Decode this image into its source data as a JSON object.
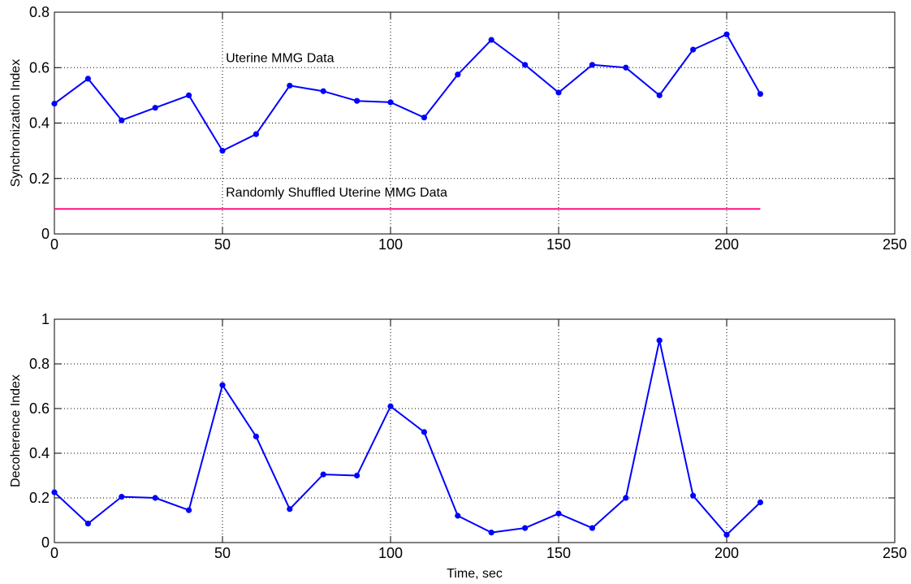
{
  "chart_data": [
    {
      "type": "line",
      "xlabel": "",
      "ylabel": "Synchronization Index",
      "xlim": [
        0,
        250
      ],
      "ylim": [
        0,
        0.8
      ],
      "xticks": [
        0,
        50,
        100,
        150,
        200,
        250
      ],
      "yticks": [
        0,
        0.2,
        0.4,
        0.6,
        0.8
      ],
      "grid": true,
      "series": [
        {
          "color": "#0000ff",
          "markers": true,
          "x": [
            0,
            10,
            20,
            30,
            40,
            50,
            60,
            70,
            80,
            90,
            100,
            110,
            120,
            130,
            140,
            150,
            160,
            170,
            180,
            190,
            200,
            210
          ],
          "y": [
            0.47,
            0.56,
            0.41,
            0.455,
            0.5,
            0.3,
            0.36,
            0.535,
            0.515,
            0.48,
            0.475,
            0.42,
            0.575,
            0.7,
            0.61,
            0.51,
            0.61,
            0.6,
            0.5,
            0.665,
            0.72,
            0.505
          ]
        },
        {
          "color": "#ff1080",
          "markers": false,
          "x": [
            0,
            210
          ],
          "y": [
            0.09,
            0.09
          ]
        }
      ],
      "annotations": [
        {
          "text": "Uterine MMG Data",
          "x": 51,
          "y": 0.62
        },
        {
          "text": "Randomly Shuffled Uterine MMG Data",
          "x": 51,
          "y": 0.135
        }
      ]
    },
    {
      "type": "line",
      "xlabel": "Time, sec",
      "ylabel": "Decoherence Index",
      "xlim": [
        0,
        250
      ],
      "ylim": [
        0,
        1
      ],
      "xticks": [
        0,
        50,
        100,
        150,
        200,
        250
      ],
      "yticks": [
        0,
        0.2,
        0.4,
        0.6,
        0.8,
        1
      ],
      "grid": true,
      "series": [
        {
          "color": "#0000ff",
          "markers": true,
          "x": [
            0,
            10,
            20,
            30,
            40,
            50,
            60,
            70,
            80,
            90,
            100,
            110,
            120,
            130,
            140,
            150,
            160,
            170,
            180,
            190,
            200,
            210
          ],
          "y": [
            0.225,
            0.085,
            0.205,
            0.2,
            0.145,
            0.705,
            0.475,
            0.15,
            0.305,
            0.3,
            0.61,
            0.495,
            0.12,
            0.045,
            0.065,
            0.13,
            0.065,
            0.2,
            0.905,
            0.21,
            0.035,
            0.18
          ]
        }
      ],
      "annotations": []
    }
  ]
}
